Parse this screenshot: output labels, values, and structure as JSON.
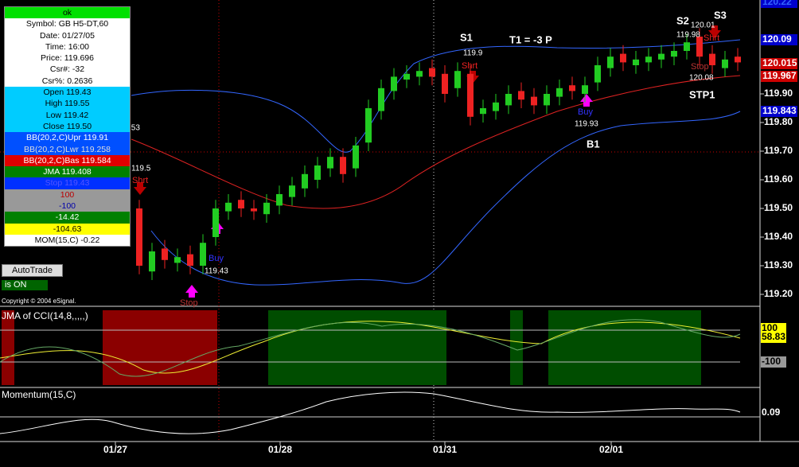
{
  "info_panel": {
    "status": "ok",
    "rows": [
      "Symbol: GB H5-DT,60",
      "Date: 01/27/05",
      "Time: 16:00",
      "Price: 119.696",
      "Csr#: -32",
      "Csr%: 0.2636",
      "Open 119.43",
      "High 119.55",
      "Low 119.42",
      "Close 119.50",
      "BB(20,2,C)Upr 119.91",
      "BB(20,2,C)Lwr 119.258",
      "BB(20,2,C)Bas 119.584",
      "JMA 119.408",
      "Stop 119.43",
      "100",
      "-100",
      "-14.42",
      "-104.63",
      "MOM(15,C) -0.22"
    ]
  },
  "buttons": {
    "autotrade": "AutoTrade",
    "status": "is ON"
  },
  "copyright": "Copyright © 2004 eSignal.",
  "price_panel": {
    "ylim": [
      119.2,
      120.2
    ],
    "open": [
      119.5,
      119.28,
      119.36,
      119.31,
      119.34,
      119.3,
      119.4,
      119.49,
      119.53,
      119.5,
      119.48,
      119.51,
      119.54,
      119.57,
      119.6,
      119.64,
      119.68,
      119.64,
      119.73,
      119.84,
      119.91,
      119.95,
      119.96,
      119.99,
      119.97,
      119.92,
      119.97,
      119.83,
      119.84,
      119.86,
      119.91,
      119.89,
      119.86,
      119.89,
      119.93,
      119.9,
      119.94,
      119.99,
      120.04,
      120.0,
      120.01,
      120.02,
      120.03,
      120.05,
      120.1,
      120.04,
      119.99,
      120.03
    ],
    "high": [
      119.53,
      119.38,
      119.39,
      119.36,
      119.37,
      119.41,
      119.53,
      119.55,
      119.56,
      119.53,
      119.55,
      119.58,
      119.61,
      119.65,
      119.68,
      119.71,
      119.71,
      119.75,
      119.88,
      119.95,
      119.99,
      120.0,
      120.01,
      120.02,
      120.0,
      120.01,
      120.0,
      119.88,
      119.9,
      119.93,
      119.94,
      119.92,
      119.93,
      119.95,
      119.96,
      119.96,
      120.03,
      120.06,
      120.07,
      120.05,
      120.06,
      120.07,
      120.08,
      120.11,
      120.13,
      120.07,
      120.05,
      120.06
    ],
    "low": [
      119.27,
      119.25,
      119.29,
      119.28,
      119.27,
      119.27,
      119.37,
      119.46,
      119.47,
      119.46,
      119.45,
      119.48,
      119.51,
      119.54,
      119.57,
      119.61,
      119.59,
      119.61,
      119.7,
      119.81,
      119.88,
      119.92,
      119.93,
      119.93,
      119.87,
      119.89,
      119.79,
      119.8,
      119.81,
      119.83,
      119.85,
      119.83,
      119.83,
      119.86,
      119.88,
      119.87,
      119.91,
      119.96,
      119.98,
      119.97,
      119.98,
      119.99,
      120.0,
      120.02,
      120.0,
      119.97,
      119.96,
      119.98
    ],
    "close": [
      119.3,
      119.35,
      119.32,
      119.33,
      119.3,
      119.38,
      119.5,
      119.52,
      119.5,
      119.49,
      119.52,
      119.55,
      119.58,
      119.62,
      119.65,
      119.68,
      119.62,
      119.72,
      119.85,
      119.92,
      119.96,
      119.97,
      119.98,
      119.96,
      119.9,
      119.98,
      119.82,
      119.85,
      119.87,
      119.9,
      119.88,
      119.86,
      119.9,
      119.92,
      119.91,
      119.93,
      120.0,
      120.03,
      120.01,
      120.02,
      120.03,
      120.04,
      120.05,
      120.08,
      120.03,
      120.0,
      120.02,
      120.01
    ],
    "yticks": [
      {
        "value": 119.9,
        "label": "119.90"
      },
      {
        "value": 119.8,
        "label": "119.80"
      },
      {
        "value": 119.7,
        "label": "119.70"
      },
      {
        "value": 119.6,
        "label": "119.60"
      },
      {
        "value": 119.5,
        "label": "119.50"
      },
      {
        "value": 119.4,
        "label": "119.40"
      },
      {
        "value": 119.3,
        "label": "119.30"
      },
      {
        "value": 119.2,
        "label": "119.20"
      }
    ],
    "tags": [
      "120.22",
      "120.09",
      "120.015",
      "119.967",
      "119.843"
    ],
    "annotations": [
      "S1",
      "T1 = -3 P",
      "S2",
      "S3",
      "B1",
      "STP1",
      "Shrt",
      "Shrt",
      "Shrt",
      "Buy",
      "Buy",
      "Stop",
      "Stop",
      "119.9",
      "119.93",
      "119.43",
      "119.98",
      "120.01",
      "120.08",
      "119.5",
      ".53"
    ]
  },
  "cci_panel": {
    "title": "JMA of CCI(14,8,,,,,)",
    "labels": [
      "100",
      "58.83",
      "-100"
    ]
  },
  "momentum_panel": {
    "title": "Momentum(15,C)",
    "labels": [
      "0.09"
    ]
  },
  "dates": [
    "01/27",
    "01/28",
    "01/31",
    "02/01"
  ]
}
